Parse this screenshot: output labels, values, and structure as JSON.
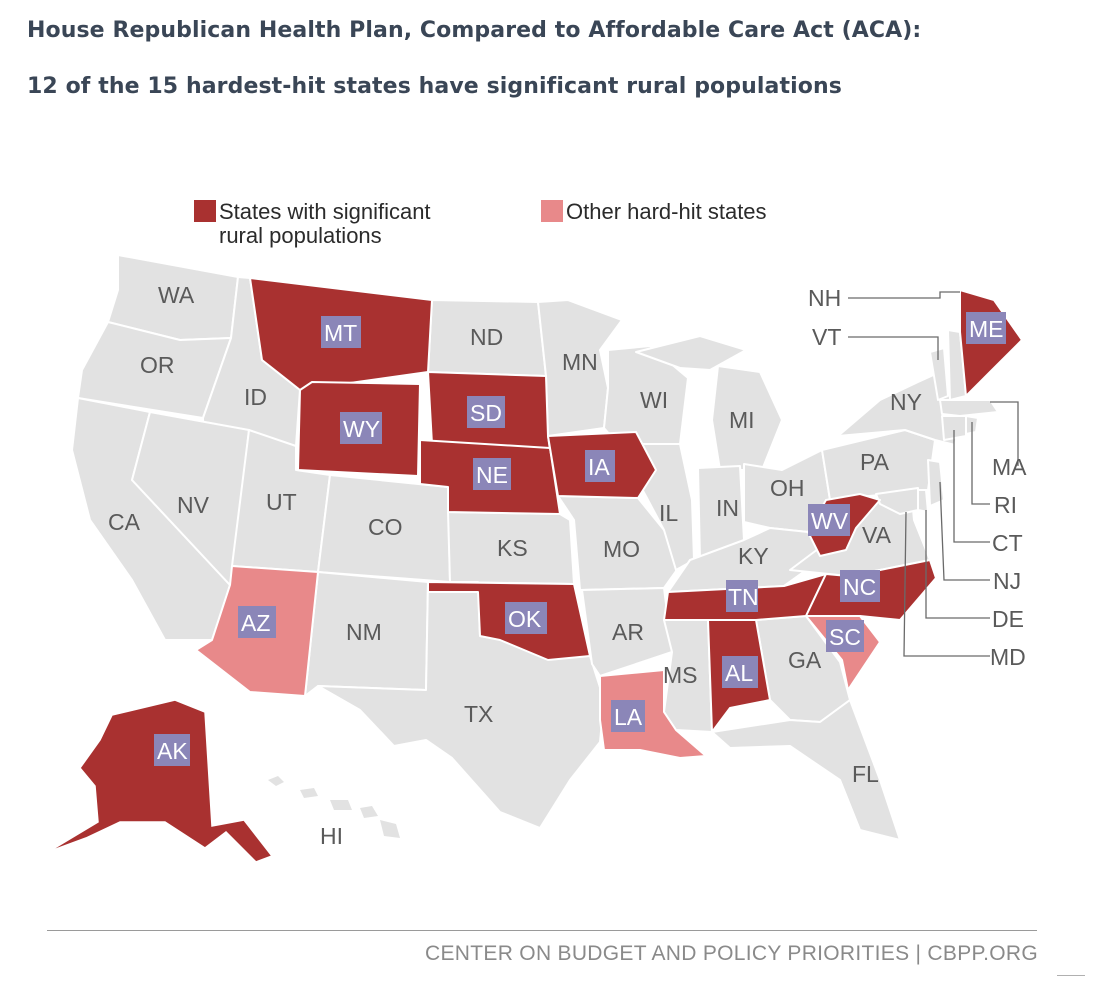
{
  "title": "House Republican Health Plan, Compared to Affordable Care Act (ACA):",
  "subtitle": "12 of the 15 hardest-hit states have significant rural populations",
  "legend": {
    "rural_line1": "States with significant",
    "rural_line2": "rural populations",
    "other": "Other hard-hit states"
  },
  "colors": {
    "rural": "#a93130",
    "other": "#e8898a",
    "neutral": "#e2e2e2",
    "label_box": "#8b86b8"
  },
  "states": {
    "WA": "WA",
    "OR": "OR",
    "CA": "CA",
    "ID": "ID",
    "NV": "NV",
    "MT": "MT",
    "WY": "WY",
    "UT": "UT",
    "AZ": "AZ",
    "CO": "CO",
    "NM": "NM",
    "ND": "ND",
    "SD": "SD",
    "NE": "NE",
    "KS": "KS",
    "OK": "OK",
    "TX": "TX",
    "MN": "MN",
    "IA": "IA",
    "MO": "MO",
    "AR": "AR",
    "LA": "LA",
    "WI": "WI",
    "IL": "IL",
    "MS": "MS",
    "MI": "MI",
    "IN": "IN",
    "KY": "KY",
    "TN": "TN",
    "AL": "AL",
    "OH": "OH",
    "WV": "WV",
    "VA": "VA",
    "NC": "NC",
    "SC": "SC",
    "GA": "GA",
    "FL": "FL",
    "PA": "PA",
    "NY": "NY",
    "ME": "ME",
    "NH": "NH",
    "VT": "VT",
    "MA": "MA",
    "RI": "RI",
    "CT": "CT",
    "NJ": "NJ",
    "DE": "DE",
    "MD": "MD",
    "AK": "AK",
    "HI": "HI"
  },
  "footer": "CENTER ON BUDGET AND POLICY PRIORITIES | CBPP.ORG"
}
